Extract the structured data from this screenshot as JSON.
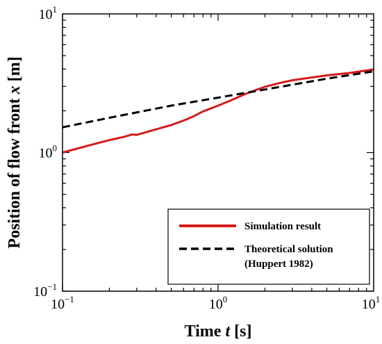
{
  "chart_data": {
    "type": "line",
    "x_scale": "log",
    "y_scale": "log",
    "xlim": [
      0.1,
      10
    ],
    "ylim": [
      0.1,
      10
    ],
    "x_ticks": [
      {
        "value": 0.1,
        "base": "10",
        "exp": "−1"
      },
      {
        "value": 1,
        "base": "10",
        "exp": "0"
      },
      {
        "value": 10,
        "base": "10",
        "exp": "1"
      }
    ],
    "y_ticks": [
      {
        "value": 0.1,
        "base": "10",
        "exp": "−1"
      },
      {
        "value": 1,
        "base": "10",
        "exp": "0"
      },
      {
        "value": 10,
        "base": "10",
        "exp": "1"
      }
    ],
    "xlabel": {
      "pre": "Time ",
      "var": "t",
      "post": " [s]"
    },
    "ylabel": {
      "pre": "Position of flow front ",
      "var": "x",
      "post": " [m]"
    },
    "grid": false,
    "legend_position": "bottom-right",
    "series": [
      {
        "name": "Simulation result",
        "color": "#d61a1a",
        "style": "solid",
        "x": [
          0.1,
          0.15,
          0.2,
          0.25,
          0.28,
          0.3,
          0.4,
          0.5,
          0.6,
          0.7,
          0.8,
          1.0,
          1.2,
          1.5,
          2.0,
          2.5,
          3.0,
          4.0,
          5.0,
          7.0,
          10.0
        ],
        "y": [
          1.0,
          1.13,
          1.23,
          1.3,
          1.35,
          1.34,
          1.47,
          1.58,
          1.7,
          1.83,
          1.98,
          2.18,
          2.37,
          2.65,
          2.98,
          3.18,
          3.32,
          3.48,
          3.6,
          3.75,
          3.97
        ]
      },
      {
        "name": "Theoretical solution\n(Huppert 1982)",
        "legend_lines": [
          "Theoretical solution",
          "(Huppert 1982)"
        ],
        "color": "#000000",
        "style": "dashed",
        "x": [
          0.1,
          0.2,
          0.5,
          1.0,
          2.0,
          5.0,
          10.0
        ],
        "y": [
          1.52,
          1.78,
          2.18,
          2.49,
          2.85,
          3.41,
          3.85
        ]
      }
    ]
  }
}
